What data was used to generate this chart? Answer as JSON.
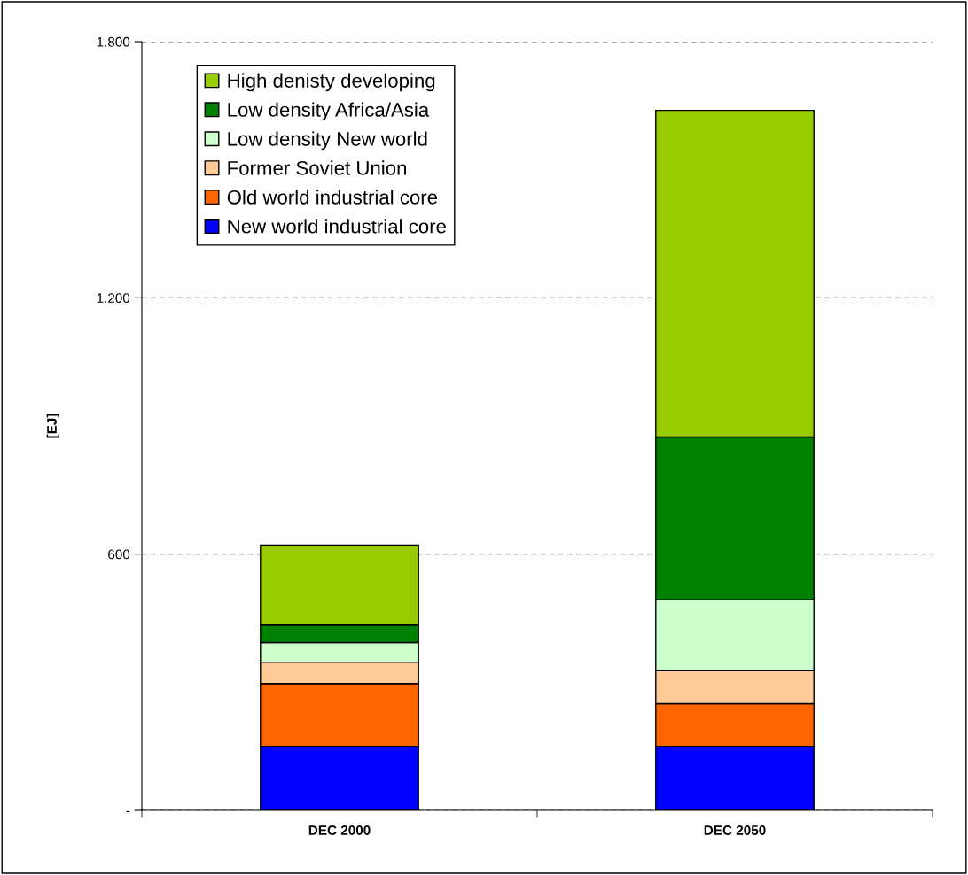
{
  "chart_data": {
    "type": "bar",
    "stacked": true,
    "ylabel": "[EJ]",
    "categories": [
      "DEC 2000",
      "DEC 2050"
    ],
    "series": [
      {
        "name": "New world industrial core",
        "color": "#0000ff",
        "values": [
          150,
          150
        ]
      },
      {
        "name": "Old world industrial core",
        "color": "#ff6600",
        "values": [
          147,
          100
        ]
      },
      {
        "name": "Former Soviet Union",
        "color": "#ffcc99",
        "values": [
          50,
          77
        ]
      },
      {
        "name": "Low density New world",
        "color": "#ccffcc",
        "values": [
          46,
          166
        ]
      },
      {
        "name": "Low density Africa/Asia",
        "color": "#008000",
        "values": [
          41,
          381
        ]
      },
      {
        "name": "High denisty developing",
        "color": "#99cc00",
        "values": [
          187,
          765
        ]
      }
    ],
    "ylim": [
      0,
      1800
    ],
    "yticks": [
      {
        "value": 0,
        "label": "-"
      },
      600,
      {
        "value": 1200,
        "label": "1.200"
      },
      {
        "value": 1800,
        "label": "1.800"
      }
    ],
    "grid": "y",
    "legend": "top left"
  }
}
